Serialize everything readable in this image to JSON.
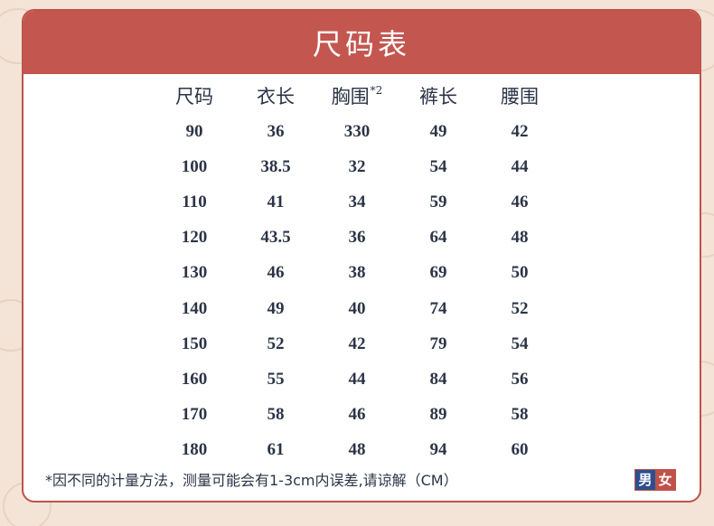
{
  "title": "尺码表",
  "headers": [
    "尺码",
    "衣长",
    "胸围",
    "裤长",
    "腰围"
  ],
  "header_superscript": "*2",
  "rows": [
    [
      "90",
      "36",
      "330",
      "49",
      "42"
    ],
    [
      "100",
      "38.5",
      "32",
      "54",
      "44"
    ],
    [
      "110",
      "41",
      "34",
      "59",
      "46"
    ],
    [
      "120",
      "43.5",
      "36",
      "64",
      "48"
    ],
    [
      "130",
      "46",
      "38",
      "69",
      "50"
    ],
    [
      "140",
      "49",
      "40",
      "74",
      "52"
    ],
    [
      "150",
      "52",
      "42",
      "79",
      "54"
    ],
    [
      "160",
      "55",
      "44",
      "84",
      "56"
    ],
    [
      "170",
      "58",
      "46",
      "89",
      "58"
    ],
    [
      "180",
      "61",
      "48",
      "94",
      "60"
    ]
  ],
  "footnote": "*因不同的计量方法，测量可能会有1-3cm内误差,请谅解（CM）",
  "badge": {
    "male": "男",
    "female": "女"
  },
  "colors": {
    "accent": "#c35750",
    "text": "#2b3446",
    "background": "#f3e4d7",
    "male_badge": "#2d4f8f"
  }
}
